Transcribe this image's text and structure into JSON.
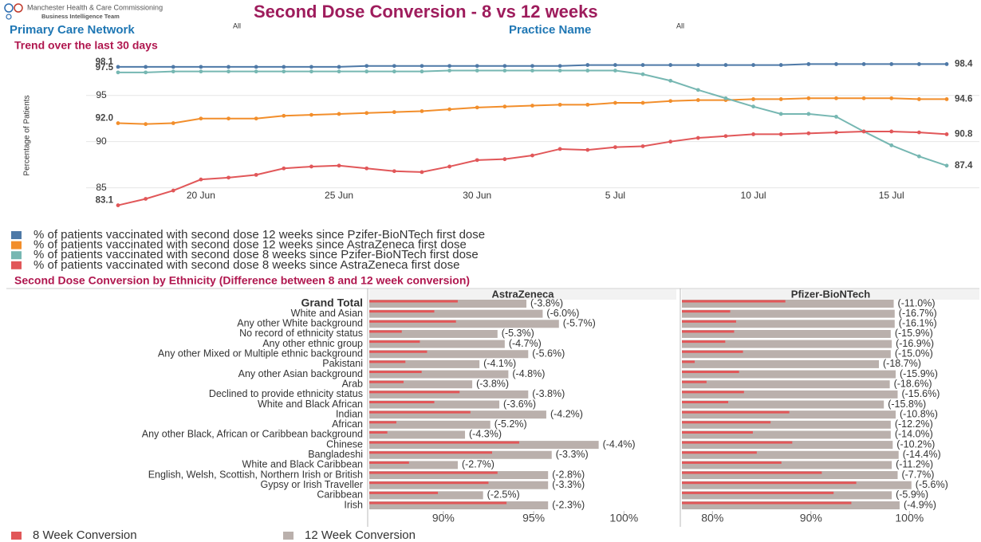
{
  "header": {
    "org": "Manchester Health & Care Commissioning",
    "team": "Business Intelligence Team",
    "title": "Second Dose Conversion - 8 vs 12 weeks",
    "filters": [
      {
        "label": "Primary Care Network",
        "value": "All"
      },
      {
        "label": "Practice Name",
        "value": "All"
      }
    ]
  },
  "chart_data": [
    {
      "type": "line",
      "title": "Trend over the last 30 days",
      "ylabel": "Percentage of Patients",
      "categories": [
        "17 Jun",
        "18 Jun",
        "19 Jun",
        "20 Jun",
        "21 Jun",
        "22 Jun",
        "23 Jun",
        "24 Jun",
        "25 Jun",
        "26 Jun",
        "27 Jun",
        "28 Jun",
        "29 Jun",
        "30 Jun",
        "1 Jul",
        "2 Jul",
        "3 Jul",
        "4 Jul",
        "5 Jul",
        "6 Jul",
        "7 Jul",
        "8 Jul",
        "9 Jul",
        "10 Jul",
        "11 Jul",
        "12 Jul",
        "13 Jul",
        "14 Jul",
        "15 Jul",
        "16 Jul",
        "17 Jul"
      ],
      "xticks": [
        "20 Jun",
        "25 Jun",
        "30 Jun",
        "5 Jul",
        "10 Jul",
        "15 Jul"
      ],
      "ylim": [
        82.2,
        99.3
      ],
      "yticks": [
        85,
        90,
        95
      ],
      "grid": true,
      "series": [
        {
          "name": "% of patients vaccinated with second dose 12 weeks since Pzifer-BioNTech first dose",
          "color": "#4e79a7",
          "values": [
            98.1,
            98.1,
            98.1,
            98.1,
            98.1,
            98.1,
            98.1,
            98.1,
            98.1,
            98.2,
            98.2,
            98.2,
            98.2,
            98.2,
            98.2,
            98.2,
            98.2,
            98.3,
            98.3,
            98.3,
            98.3,
            98.3,
            98.3,
            98.3,
            98.3,
            98.4,
            98.4,
            98.4,
            98.4,
            98.4,
            98.4
          ],
          "value_labels": [
            "98.1",
            null,
            null,
            null,
            null,
            null,
            null,
            null,
            null,
            null,
            null,
            null,
            null,
            null,
            null,
            null,
            null,
            null,
            null,
            null,
            null,
            null,
            null,
            null,
            null,
            null,
            null,
            null,
            null,
            null,
            "98.4"
          ]
        },
        {
          "name": "% of patients vaccinated with second dose 12 weeks since AstraZeneca first dose",
          "color": "#f28e2b",
          "values": [
            92.0,
            91.9,
            92.0,
            92.5,
            92.5,
            92.5,
            92.8,
            92.9,
            93.0,
            93.1,
            93.2,
            93.3,
            93.5,
            93.7,
            93.8,
            93.9,
            94.0,
            94.0,
            94.2,
            94.2,
            94.4,
            94.5,
            94.5,
            94.6,
            94.6,
            94.7,
            94.7,
            94.7,
            94.7,
            94.6,
            94.6
          ],
          "value_labels": [
            "92.0",
            null,
            null,
            null,
            null,
            null,
            null,
            null,
            null,
            null,
            null,
            null,
            null,
            null,
            null,
            null,
            null,
            null,
            null,
            null,
            null,
            null,
            null,
            null,
            null,
            null,
            null,
            null,
            null,
            null,
            "94.6"
          ]
        },
        {
          "name": "% of patients vaccinated with second dose 8 weeks since Pzifer-BioNTech first dose",
          "color": "#76b7b2",
          "values": [
            97.5,
            97.5,
            97.6,
            97.6,
            97.6,
            97.6,
            97.6,
            97.6,
            97.6,
            97.6,
            97.6,
            97.6,
            97.7,
            97.7,
            97.7,
            97.7,
            97.7,
            97.7,
            97.7,
            97.3,
            96.6,
            95.6,
            94.7,
            93.8,
            93.0,
            93.0,
            92.7,
            91.1,
            89.6,
            88.4,
            87.4
          ],
          "value_labels": [
            "97.5",
            null,
            null,
            null,
            null,
            null,
            null,
            null,
            null,
            null,
            null,
            null,
            null,
            null,
            null,
            null,
            null,
            null,
            null,
            null,
            null,
            null,
            null,
            null,
            null,
            null,
            null,
            null,
            null,
            null,
            "87.4"
          ]
        },
        {
          "name": "% of patients vaccinated with second dose 8 weeks since AstraZeneca first dose",
          "color": "#e15759",
          "values": [
            83.1,
            83.8,
            84.7,
            85.9,
            86.1,
            86.4,
            87.1,
            87.3,
            87.4,
            87.1,
            86.8,
            86.7,
            87.3,
            88.0,
            88.1,
            88.5,
            89.2,
            89.1,
            89.4,
            89.5,
            90.0,
            90.4,
            90.6,
            90.8,
            90.8,
            90.9,
            91.0,
            91.1,
            91.1,
            91.0,
            90.8
          ],
          "value_labels": [
            "83.1",
            null,
            null,
            null,
            null,
            null,
            null,
            null,
            null,
            null,
            null,
            null,
            null,
            null,
            null,
            null,
            null,
            null,
            null,
            null,
            null,
            null,
            null,
            null,
            null,
            null,
            null,
            null,
            null,
            null,
            "90.8"
          ]
        }
      ]
    },
    {
      "type": "bar",
      "orientation": "horizontal",
      "title": "Second Dose Conversion by Ethnicity (Difference between 8 and 12 week conversion)",
      "categories": [
        "Grand Total",
        "White and Asian",
        "Any other White background",
        "No record of ethnicity status",
        "Any other ethnic group",
        "Any other Mixed or Multiple ethnic background",
        "Pakistani",
        "Any other Asian background",
        "Arab",
        "Declined to provide ethnicity status",
        "White and Black African",
        "Indian",
        "African",
        "Any other Black, African or Caribbean background",
        "Chinese",
        "Bangladeshi",
        "White and Black Caribbean",
        "English, Welsh, Scottish, Northern Irish or British",
        "Gypsy or Irish Traveller",
        "Caribbean",
        "Irish"
      ],
      "legend": [
        {
          "name": "8 Week Conversion",
          "color": "#e15759"
        },
        {
          "name": "12 Week Conversion",
          "color": "#bab0ac"
        }
      ],
      "panels": [
        {
          "title": "AstraZeneca",
          "xlim": [
            85.9,
            102.9
          ],
          "xticks": [
            {
              "value": 90,
              "label": "90%"
            },
            {
              "value": 95,
              "label": "95%"
            },
            {
              "value": 100,
              "label": "100%"
            }
          ],
          "series": [
            {
              "values": [
                90.8,
                89.5,
                90.7,
                87.7,
                88.7,
                89.1,
                87.9,
                88.8,
                87.8,
                90.9,
                89.5,
                91.5,
                87.4,
                86.9,
                94.2,
                92.7,
                88.1,
                93.0,
                92.5,
                89.7,
                93.5
              ]
            },
            {
              "values": [
                94.6,
                95.5,
                96.4,
                93.0,
                93.4,
                94.7,
                92.0,
                93.6,
                91.6,
                94.7,
                93.1,
                95.7,
                92.6,
                91.2,
                98.6,
                96.0,
                90.8,
                95.8,
                95.8,
                92.2,
                95.8
              ]
            }
          ],
          "differences": [
            -3.8,
            -6.0,
            -5.7,
            -5.3,
            -4.7,
            -5.6,
            -4.1,
            -4.8,
            -3.8,
            -3.8,
            -3.6,
            -4.2,
            -5.2,
            -4.3,
            -4.4,
            -3.3,
            -2.7,
            -2.8,
            -3.3,
            -2.5,
            -2.3
          ],
          "difference_labels": [
            "(-3.8%)",
            "(-6.0%)",
            "(-5.7%)",
            "(-5.3%)",
            "(-4.7%)",
            "(-5.6%)",
            "(-4.1%)",
            "(-4.8%)",
            "(-3.8%)",
            "(-3.8%)",
            "(-3.6%)",
            "(-4.2%)",
            "(-5.2%)",
            "(-4.3%)",
            "(-4.4%)",
            "(-3.3%)",
            "(-2.7%)",
            "(-2.8%)",
            "(-3.3%)",
            "(-2.5%)",
            "(-2.3%)"
          ]
        },
        {
          "title": "Pfizer-BioNTech",
          "xlim": [
            76.9,
            107.1
          ],
          "xticks": [
            {
              "value": 80,
              "label": "80%"
            },
            {
              "value": 90,
              "label": "90%"
            },
            {
              "value": 100,
              "label": "100%"
            }
          ],
          "series": [
            {
              "values": [
                87.4,
                81.8,
                82.4,
                82.2,
                81.3,
                83.1,
                78.2,
                82.7,
                79.4,
                83.2,
                81.6,
                87.8,
                85.9,
                84.1,
                88.1,
                84.5,
                87.0,
                91.1,
                94.6,
                92.3,
                94.1
              ]
            },
            {
              "values": [
                98.4,
                98.5,
                98.5,
                98.1,
                98.2,
                98.1,
                96.9,
                98.6,
                98.0,
                98.8,
                97.4,
                98.6,
                98.1,
                98.1,
                98.3,
                98.9,
                98.2,
                98.8,
                100.2,
                98.2,
                99.0
              ]
            }
          ],
          "differences": [
            -11.0,
            -16.7,
            -16.1,
            -15.9,
            -16.9,
            -15.0,
            -18.7,
            -15.9,
            -18.6,
            -15.6,
            -15.8,
            -10.8,
            -12.2,
            -14.0,
            -10.2,
            -14.4,
            -11.2,
            -7.7,
            -5.6,
            -5.9,
            -4.9
          ],
          "difference_labels": [
            "(-11.0%)",
            "(-16.7%)",
            "(-16.1%)",
            "(-15.9%)",
            "(-16.9%)",
            "(-15.0%)",
            "(-18.7%)",
            "(-15.9%)",
            "(-18.6%)",
            "(-15.6%)",
            "(-15.8%)",
            "(-10.8%)",
            "(-12.2%)",
            "(-14.0%)",
            "(-10.2%)",
            "(-14.4%)",
            "(-11.2%)",
            "(-7.7%)",
            "(-5.6%)",
            "(-5.9%)",
            "(-4.9%)"
          ]
        }
      ]
    }
  ]
}
